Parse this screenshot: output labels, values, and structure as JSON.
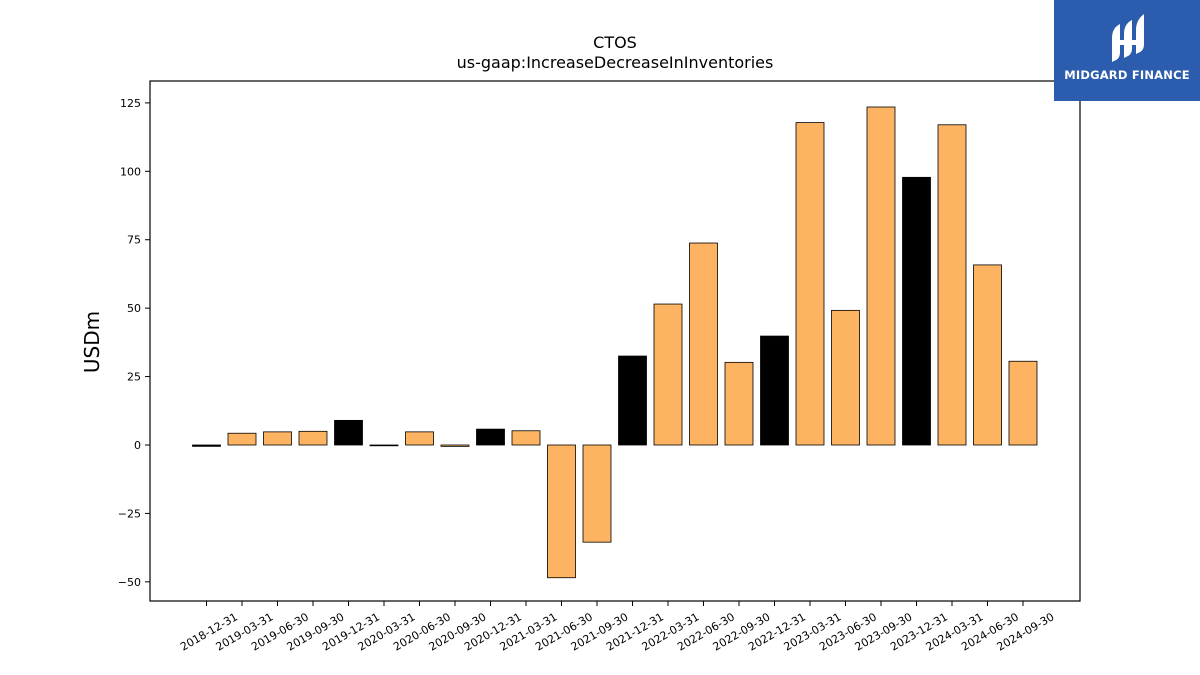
{
  "logo": {
    "name": "MIDGARD FINANCE",
    "icon": "midgard-logo-icon",
    "background": "#2b5cae"
  },
  "colors": {
    "default_bar": "#fdb462",
    "q4_bar": "#000000",
    "edge": "#000000"
  },
  "chart_data": {
    "type": "bar",
    "title": "CTOS",
    "subtitle": "us-gaap:IncreaseDecreaseInInventories",
    "xlabel": "",
    "ylabel": "USDm",
    "ylim": [
      -57,
      133
    ],
    "yticks": [
      -50,
      -25,
      0,
      25,
      50,
      75,
      100,
      125
    ],
    "ytick_labels": [
      "−50",
      "−25",
      "0",
      "25",
      "50",
      "75",
      "100",
      "125"
    ],
    "grid": false,
    "categories": [
      "2018-12-31",
      "2019-03-31",
      "2019-06-30",
      "2019-09-30",
      "2019-12-31",
      "2020-03-31",
      "2020-06-30",
      "2020-09-30",
      "2020-12-31",
      "2021-03-31",
      "2021-06-30",
      "2021-09-30",
      "2021-12-31",
      "2022-03-31",
      "2022-06-30",
      "2022-09-30",
      "2022-12-31",
      "2023-03-31",
      "2023-06-30",
      "2023-09-30",
      "2023-12-31",
      "2024-03-31",
      "2024-06-30",
      "2024-09-30"
    ],
    "values": [
      -0.5,
      4.3,
      4.8,
      5.0,
      9.0,
      -0.2,
      4.8,
      -0.5,
      5.8,
      5.2,
      -48.5,
      -35.5,
      32.5,
      51.5,
      73.8,
      30.2,
      39.8,
      117.8,
      49.2,
      123.5,
      97.8,
      117.0,
      65.8,
      30.6
    ]
  }
}
